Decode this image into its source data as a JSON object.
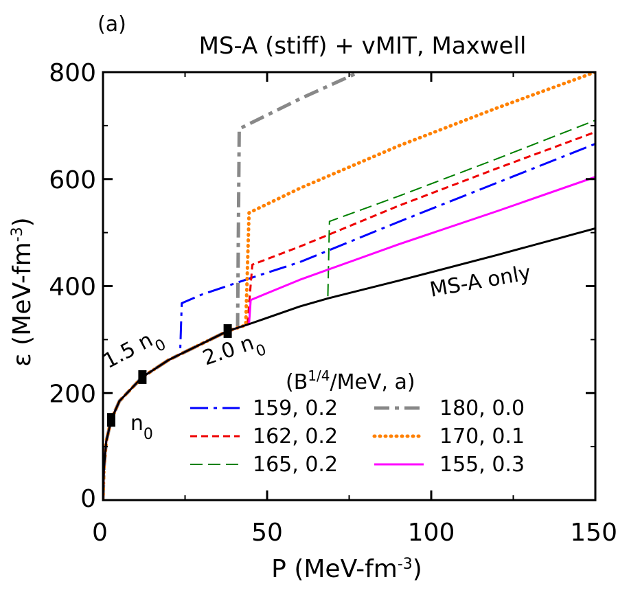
{
  "chart_data": {
    "type": "line",
    "panel_label": "(a)",
    "title": "MS-A (stiff) + vMIT, Maxwell",
    "xlabel": {
      "main": "P (MeV-fm",
      "sup": "-3",
      "tail": ")"
    },
    "ylabel": {
      "main": "ε (MeV-fm",
      "sup": "-3",
      "tail": ")"
    },
    "xlim": [
      0,
      150
    ],
    "ylim": [
      0,
      800
    ],
    "xticks": [
      0,
      50,
      100,
      150
    ],
    "yticks": [
      0,
      200,
      400,
      600,
      800
    ],
    "legend_title": {
      "pre": "(B",
      "sup": "1/4",
      "post": "/MeV, a)"
    },
    "series": [
      {
        "name": "MS-A only",
        "color": "#000000",
        "style": "solid",
        "x": [
          0,
          0.3,
          1,
          2.5,
          5,
          12,
          20,
          30,
          38,
          45,
          60,
          68.5,
          90,
          120,
          150
        ],
        "y": [
          0,
          60,
          110,
          150,
          185,
          230,
          262,
          292,
          316,
          330,
          362,
          377,
          410,
          458,
          508
        ]
      },
      {
        "name": "159, 0.2",
        "color": "#0000ff",
        "style": "dashdot",
        "x": [
          0,
          0.3,
          1,
          2.5,
          5,
          12,
          20,
          23.5,
          24,
          30,
          45,
          60,
          90,
          120,
          150
        ],
        "y": [
          0,
          60,
          110,
          150,
          185,
          230,
          262,
          273,
          368,
          384,
          415,
          445,
          520,
          593,
          666
        ]
      },
      {
        "name": "162, 0.2",
        "color": "#ee0000",
        "style": "shortdash",
        "x": [
          0,
          0.3,
          1,
          2.5,
          5,
          12,
          20,
          30,
          38,
          44,
          45.5,
          60,
          90,
          120,
          150
        ],
        "y": [
          0,
          60,
          110,
          150,
          185,
          230,
          262,
          292,
          316,
          328,
          440,
          474,
          550,
          620,
          688
        ]
      },
      {
        "name": "165, 0.2",
        "color": "#008000",
        "style": "longdash",
        "x": [
          0,
          0.3,
          1,
          2.5,
          5,
          12,
          20,
          30,
          38,
          45,
          60,
          68.5,
          69,
          90,
          120,
          150
        ],
        "y": [
          0,
          60,
          110,
          150,
          185,
          230,
          262,
          292,
          316,
          330,
          362,
          377,
          521,
          568,
          638,
          710
        ]
      },
      {
        "name": "180, 0.0",
        "color": "#888888",
        "style": "dashdotbold",
        "x": [
          0,
          0.3,
          1,
          2.5,
          5,
          12,
          20,
          30,
          38,
          41,
          41.5,
          60,
          78
        ],
        "y": [
          0,
          60,
          110,
          150,
          185,
          230,
          262,
          292,
          316,
          322,
          694,
          750,
          800
        ]
      },
      {
        "name": "170, 0.1",
        "color": "#ff8000",
        "style": "dotted",
        "x": [
          0,
          0.3,
          1,
          2.5,
          5,
          12,
          20,
          30,
          38,
          43.5,
          44.5,
          60,
          90,
          120,
          150
        ],
        "y": [
          0,
          60,
          110,
          150,
          185,
          230,
          262,
          292,
          316,
          327,
          537,
          583,
          662,
          733,
          800
        ]
      },
      {
        "name": "155, 0.3",
        "color": "#ff00ff",
        "style": "solid",
        "x": [
          0,
          0.3,
          1,
          2.5,
          5,
          12,
          20,
          30,
          38,
          44.5,
          45,
          60,
          90,
          120,
          150
        ],
        "y": [
          0,
          60,
          110,
          150,
          185,
          230,
          262,
          292,
          316,
          329,
          374,
          412,
          478,
          540,
          604
        ]
      }
    ],
    "markers": [
      {
        "label": "n",
        "sub": "0",
        "x": 2.5,
        "y": 150
      },
      {
        "label": "1.5 n",
        "sub": "0",
        "x": 12,
        "y": 230
      },
      {
        "label": "2.0 n",
        "sub": "0",
        "x": 38,
        "y": 316
      }
    ],
    "curve_annotation": "MS-A only",
    "legend_order": [
      1,
      4,
      2,
      5,
      3,
      6
    ],
    "legend_placement": "lower-right"
  }
}
